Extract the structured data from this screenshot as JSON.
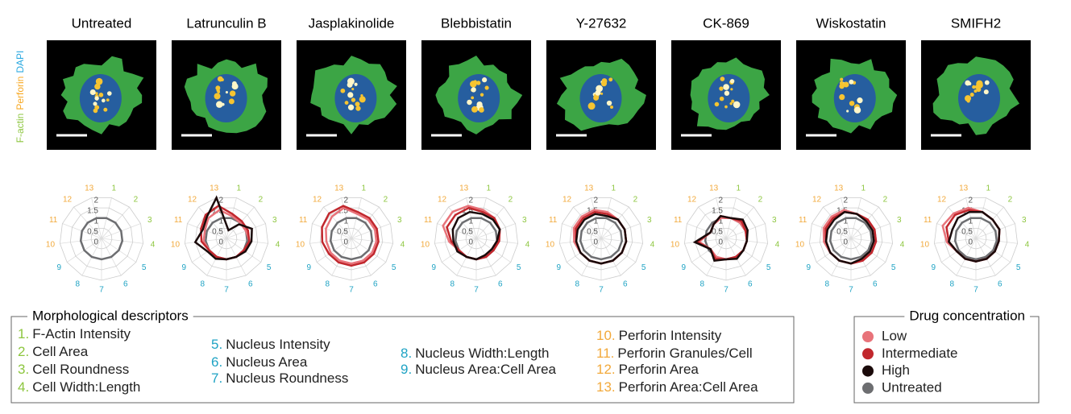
{
  "stain_labels": [
    {
      "text": "F-actin",
      "color": "#8dc63f"
    },
    {
      "text": "Perforin",
      "color": "#f7a823"
    },
    {
      "text": "DAPI",
      "color": "#29a8e0"
    }
  ],
  "chart_data": [
    {
      "type": "radar",
      "title": "Untreated",
      "categories": [
        "1",
        "2",
        "3",
        "4",
        "5",
        "6",
        "7",
        "8",
        "9",
        "10",
        "11",
        "12",
        "13"
      ],
      "rlim": [
        0,
        2
      ],
      "rticks": [
        0,
        0.5,
        1,
        1.5,
        2
      ],
      "series": [
        {
          "color": "#6d6e71",
          "values": [
            1,
            1,
            1,
            1,
            1,
            1,
            1,
            1,
            1,
            1,
            1,
            1,
            1
          ]
        }
      ]
    },
    {
      "type": "radar",
      "title": "Latrunculin B",
      "categories": [
        "1",
        "2",
        "3",
        "4",
        "5",
        "6",
        "7",
        "8",
        "9",
        "10",
        "11",
        "12",
        "13"
      ],
      "rlim": [
        0,
        2
      ],
      "rticks": [
        0,
        0.5,
        1,
        1.5,
        2
      ],
      "series": [
        {
          "color": "#6d6e71",
          "values": [
            1,
            1,
            1,
            1,
            1,
            1,
            1,
            1,
            1,
            1,
            1,
            1,
            1
          ]
        },
        {
          "color": "#e8737a",
          "values": [
            1.1,
            1.0,
            1.0,
            1.1,
            1.0,
            1.0,
            1.0,
            1.0,
            1.0,
            1.1,
            1.1,
            1.3,
            1.4
          ]
        },
        {
          "color": "#c1272d",
          "values": [
            1.2,
            1.1,
            1.1,
            1.1,
            1.0,
            1.0,
            1.0,
            1.0,
            1.0,
            1.2,
            1.3,
            1.5,
            1.6
          ]
        },
        {
          "color": "#1a0a0a",
          "values": [
            0.4,
            0.9,
            1.3,
            1.2,
            1.1,
            1.0,
            1.0,
            1.1,
            1.1,
            1.5,
            1.2,
            1.4,
            2.0
          ]
        }
      ]
    },
    {
      "type": "radar",
      "title": "Jasplakinolide",
      "categories": [
        "1",
        "2",
        "3",
        "4",
        "5",
        "6",
        "7",
        "8",
        "9",
        "10",
        "11",
        "12",
        "13"
      ],
      "rlim": [
        0,
        2
      ],
      "rticks": [
        0,
        0.5,
        1,
        1.5,
        2
      ],
      "series": [
        {
          "color": "#6d6e71",
          "values": [
            1,
            1,
            1,
            1,
            1,
            1,
            1,
            1,
            1,
            1,
            1,
            1,
            1
          ]
        },
        {
          "color": "#e8737a",
          "values": [
            1.2,
            1.2,
            1.2,
            1.2,
            1.2,
            1.2,
            1.2,
            1.2,
            1.2,
            1.2,
            1.3,
            1.4,
            1.5
          ]
        },
        {
          "color": "#c1272d",
          "values": [
            1.3,
            1.3,
            1.3,
            1.3,
            1.3,
            1.3,
            1.3,
            1.3,
            1.3,
            1.4,
            1.5,
            1.6,
            1.6
          ]
        }
      ]
    },
    {
      "type": "radar",
      "title": "Blebbistatin",
      "categories": [
        "1",
        "2",
        "3",
        "4",
        "5",
        "6",
        "7",
        "8",
        "9",
        "10",
        "11",
        "12",
        "13"
      ],
      "rlim": [
        0,
        2
      ],
      "rticks": [
        0,
        0.5,
        1,
        1.5,
        2
      ],
      "series": [
        {
          "color": "#6d6e71",
          "values": [
            1,
            1,
            1,
            1,
            1,
            1,
            1,
            1,
            1,
            1,
            1,
            1,
            1
          ]
        },
        {
          "color": "#e8737a",
          "values": [
            1.4,
            1.3,
            1.2,
            1.1,
            1.0,
            1.0,
            1.0,
            1.0,
            1.0,
            1.3,
            1.7,
            1.7,
            1.6
          ]
        },
        {
          "color": "#c1272d",
          "values": [
            1.3,
            1.3,
            1.2,
            1.1,
            1.0,
            1.0,
            1.0,
            1.0,
            1.0,
            1.2,
            1.5,
            1.5,
            1.5
          ]
        },
        {
          "color": "#1a0a0a",
          "values": [
            1.2,
            1.2,
            1.2,
            1.0,
            0.9,
            0.9,
            1.0,
            1.0,
            1.1,
            1.1,
            1.2,
            1.3,
            1.3
          ]
        }
      ]
    },
    {
      "type": "radar",
      "title": "Y-27632",
      "categories": [
        "1",
        "2",
        "3",
        "4",
        "5",
        "6",
        "7",
        "8",
        "9",
        "10",
        "11",
        "12",
        "13"
      ],
      "rlim": [
        0,
        2
      ],
      "rticks": [
        0,
        0.5,
        1,
        1.5,
        2
      ],
      "series": [
        {
          "color": "#6d6e71",
          "values": [
            1,
            1,
            1,
            1,
            1,
            1,
            1,
            1,
            1,
            1,
            1,
            1,
            1
          ]
        },
        {
          "color": "#e8737a",
          "values": [
            1.3,
            1.2,
            1.2,
            1.2,
            1.2,
            1.2,
            1.2,
            1.2,
            1.2,
            1.3,
            1.4,
            1.4,
            1.4
          ]
        },
        {
          "color": "#c1272d",
          "values": [
            1.2,
            1.2,
            1.2,
            1.2,
            1.2,
            1.2,
            1.2,
            1.2,
            1.2,
            1.2,
            1.3,
            1.3,
            1.3
          ]
        },
        {
          "color": "#1a0a0a",
          "values": [
            1.1,
            1.2,
            1.2,
            1.2,
            1.2,
            1.2,
            1.2,
            1.2,
            1.2,
            1.2,
            1.2,
            1.2,
            1.2
          ]
        }
      ]
    },
    {
      "type": "radar",
      "title": "CK-869",
      "categories": [
        "1",
        "2",
        "3",
        "4",
        "5",
        "6",
        "7",
        "8",
        "9",
        "10",
        "11",
        "12",
        "13"
      ],
      "rlim": [
        0,
        2
      ],
      "rticks": [
        0,
        0.5,
        1,
        1.5,
        2
      ],
      "series": [
        {
          "color": "#6d6e71",
          "values": [
            1,
            1,
            1,
            1,
            1,
            1,
            1,
            1,
            1,
            1,
            1,
            1,
            1
          ]
        },
        {
          "color": "#e8737a",
          "values": [
            1.0,
            1.0,
            1.0,
            1.0,
            1.0,
            1.0,
            1.0,
            1.0,
            0.9,
            1.3,
            0.8,
            0.9,
            1.0
          ]
        },
        {
          "color": "#c1272d",
          "values": [
            1.0,
            1.1,
            1.0,
            1.0,
            1.0,
            1.0,
            1.0,
            1.1,
            0.9,
            1.4,
            0.8,
            0.9,
            1.1
          ]
        },
        {
          "color": "#1a0a0a",
          "values": [
            1.0,
            1.2,
            1.1,
            1.0,
            1.0,
            1.1,
            1.0,
            1.2,
            0.9,
            1.5,
            0.8,
            0.9,
            1.1
          ]
        }
      ]
    },
    {
      "type": "radar",
      "title": "Wiskostatin",
      "categories": [
        "1",
        "2",
        "3",
        "4",
        "5",
        "6",
        "7",
        "8",
        "9",
        "10",
        "11",
        "12",
        "13"
      ],
      "rlim": [
        0,
        2
      ],
      "rticks": [
        0,
        0.5,
        1,
        1.5,
        2
      ],
      "series": [
        {
          "color": "#6d6e71",
          "values": [
            1,
            1,
            1,
            1,
            1,
            1,
            1,
            1,
            1,
            1,
            1,
            1,
            1
          ]
        },
        {
          "color": "#e8737a",
          "values": [
            1.2,
            1.2,
            1.2,
            1.2,
            1.2,
            1.2,
            1.2,
            1.2,
            1.2,
            1.3,
            1.4,
            1.4,
            1.4
          ]
        },
        {
          "color": "#c1272d",
          "values": [
            1.2,
            1.2,
            1.2,
            1.2,
            1.2,
            1.2,
            1.2,
            1.2,
            1.2,
            1.2,
            1.3,
            1.3,
            1.3
          ]
        },
        {
          "color": "#1a0a0a",
          "values": [
            1.2,
            1.1,
            1.1,
            1.1,
            1.1,
            1.1,
            1.2,
            1.2,
            1.2,
            1.2,
            1.2,
            1.2,
            1.3
          ]
        }
      ]
    },
    {
      "type": "radar",
      "title": "SMIFH2",
      "categories": [
        "1",
        "2",
        "3",
        "4",
        "5",
        "6",
        "7",
        "8",
        "9",
        "10",
        "11",
        "12",
        "13"
      ],
      "rlim": [
        0,
        2
      ],
      "rticks": [
        0,
        0.5,
        1,
        1.5,
        2
      ],
      "series": [
        {
          "color": "#6d6e71",
          "values": [
            1,
            1,
            1,
            1,
            1,
            1,
            1,
            1,
            1,
            1,
            1,
            1,
            1
          ]
        },
        {
          "color": "#e8737a",
          "values": [
            1.3,
            1.2,
            1.2,
            1.1,
            1.1,
            1.1,
            1.1,
            1.1,
            1.1,
            1.4,
            1.7,
            1.6,
            1.5
          ]
        },
        {
          "color": "#c1272d",
          "values": [
            1.3,
            1.2,
            1.2,
            1.1,
            1.1,
            1.1,
            1.1,
            1.1,
            1.1,
            1.3,
            1.5,
            1.5,
            1.4
          ]
        },
        {
          "color": "#1a0a0a",
          "values": [
            1.3,
            1.2,
            1.2,
            1.1,
            1.1,
            1.1,
            1.1,
            1.1,
            1.1,
            1.3,
            1.2,
            1.3,
            1.3
          ]
        }
      ]
    }
  ],
  "descriptors": {
    "title": "Morphological descriptors",
    "items": [
      {
        "number": "1.",
        "text": "F-Actin Intensity",
        "color": "#8dc63f"
      },
      {
        "number": "2.",
        "text": "Cell Area",
        "color": "#8dc63f"
      },
      {
        "number": "3.",
        "text": "Cell Roundness",
        "color": "#8dc63f"
      },
      {
        "number": "4.",
        "text": "Cell Width:Length",
        "color": "#8dc63f"
      },
      {
        "number": "5.",
        "text": "Nucleus Intensity",
        "color": "#1fa3c4"
      },
      {
        "number": "6.",
        "text": "Nucleus Area",
        "color": "#1fa3c4"
      },
      {
        "number": "7.",
        "text": "Nucleus Roundness",
        "color": "#1fa3c4"
      },
      {
        "number": "8.",
        "text": "Nucleus Width:Length",
        "color": "#1fa3c4"
      },
      {
        "number": "9.",
        "text": "Nucleus Area:Cell Area",
        "color": "#1fa3c4"
      },
      {
        "number": "10.",
        "text": "Perforin Intensity",
        "color": "#f2a93b"
      },
      {
        "number": "11.",
        "text": "Perforin Granules/Cell",
        "color": "#f2a93b"
      },
      {
        "number": "12.",
        "text": "Perforin Area",
        "color": "#f2a93b"
      },
      {
        "number": "13.",
        "text": "Perforin Area:Cell Area",
        "color": "#f2a93b"
      }
    ]
  },
  "legend": {
    "title": "Drug concentration",
    "items": [
      {
        "name": "Low",
        "color": "#e8737a"
      },
      {
        "name": "Intermediate",
        "color": "#c1272d"
      },
      {
        "name": "High",
        "color": "#1a0a0a"
      },
      {
        "name": "Untreated",
        "color": "#6d6e71"
      }
    ]
  }
}
